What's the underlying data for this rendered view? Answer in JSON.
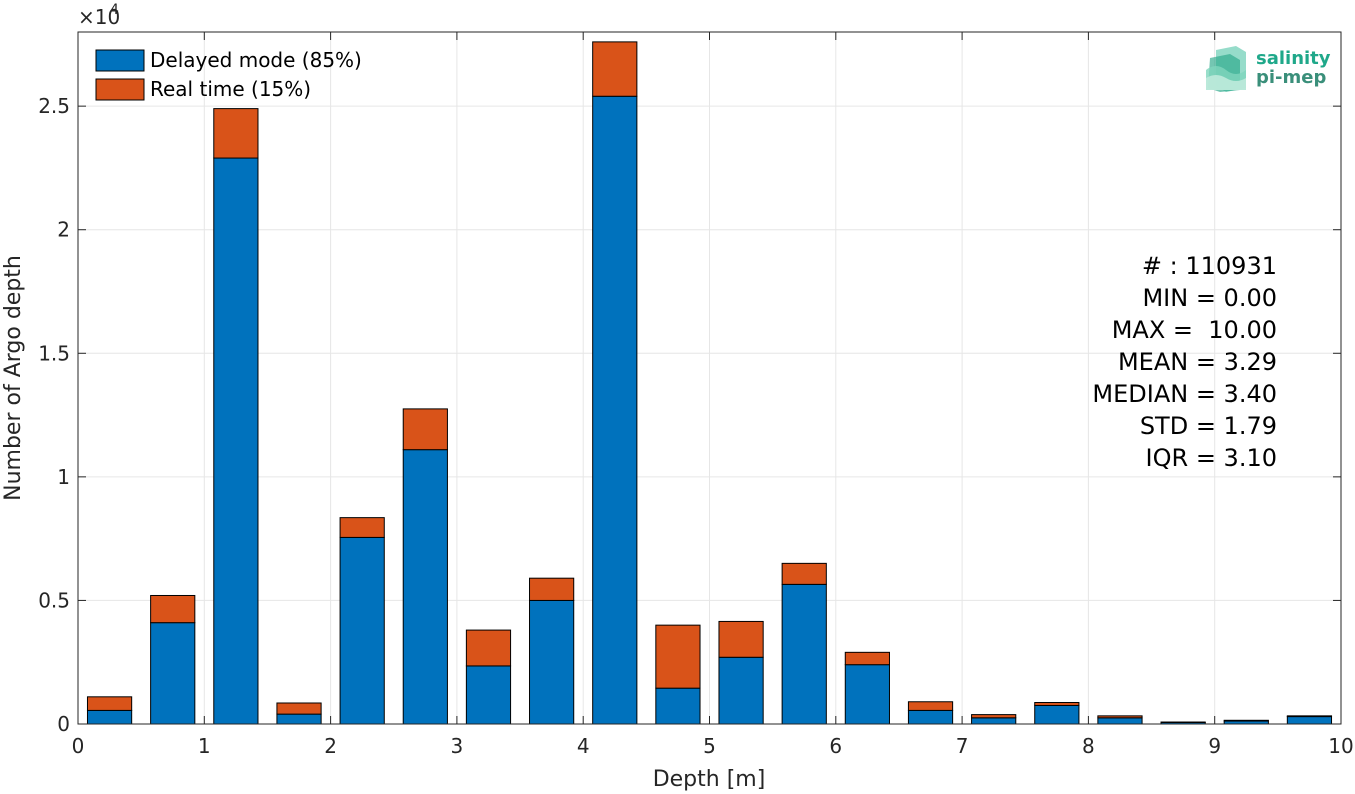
{
  "chart_data": {
    "type": "bar",
    "stacked": true,
    "xlabel": "Depth [m]",
    "ylabel": "Number of Argo depth",
    "y_exponent_label": "×10",
    "y_exponent_power": "4",
    "xlim": [
      0,
      10
    ],
    "ylim": [
      0,
      28000
    ],
    "x_ticks": [
      0,
      1,
      2,
      3,
      4,
      5,
      6,
      7,
      8,
      9,
      10
    ],
    "x_tick_labels": [
      "0",
      "1",
      "2",
      "3",
      "4",
      "5",
      "6",
      "7",
      "8",
      "9",
      "10"
    ],
    "y_ticks": [
      0,
      5000,
      10000,
      15000,
      20000,
      25000
    ],
    "y_tick_labels": [
      "0",
      "0.5",
      "1",
      "1.5",
      "2",
      "2.5"
    ],
    "grid": true,
    "bar_width": 0.35,
    "x": [
      0.25,
      0.75,
      1.25,
      1.75,
      2.25,
      2.75,
      3.25,
      3.75,
      4.25,
      4.75,
      5.25,
      5.75,
      6.25,
      6.75,
      7.25,
      7.75,
      8.25,
      8.75,
      9.25,
      9.75
    ],
    "series": [
      {
        "name": "Delayed mode (85%)",
        "color": "#0072BD",
        "values": [
          550,
          4100,
          22900,
          400,
          7550,
          11100,
          2350,
          5000,
          25400,
          1450,
          2700,
          5650,
          2400,
          550,
          250,
          750,
          250,
          60,
          120,
          300
        ]
      },
      {
        "name": "Real time (15%)",
        "color": "#D95319",
        "values": [
          550,
          1100,
          2000,
          450,
          800,
          1650,
          1450,
          900,
          2200,
          2550,
          1450,
          850,
          500,
          350,
          130,
          120,
          80,
          20,
          30,
          30
        ]
      }
    ],
    "legend_position": "top-left",
    "annotations": [
      "# : 110931",
      "MIN = 0.00",
      "MAX =  10.00",
      "MEAN = 3.29",
      "MEDIAN = 3.40",
      "STD = 1.79",
      "IQR = 3.10"
    ]
  },
  "logo": {
    "line1": "salinity",
    "line2": "pi-mep",
    "color_top": "#1fa88a",
    "color_bottom": "#3a8f7a"
  }
}
